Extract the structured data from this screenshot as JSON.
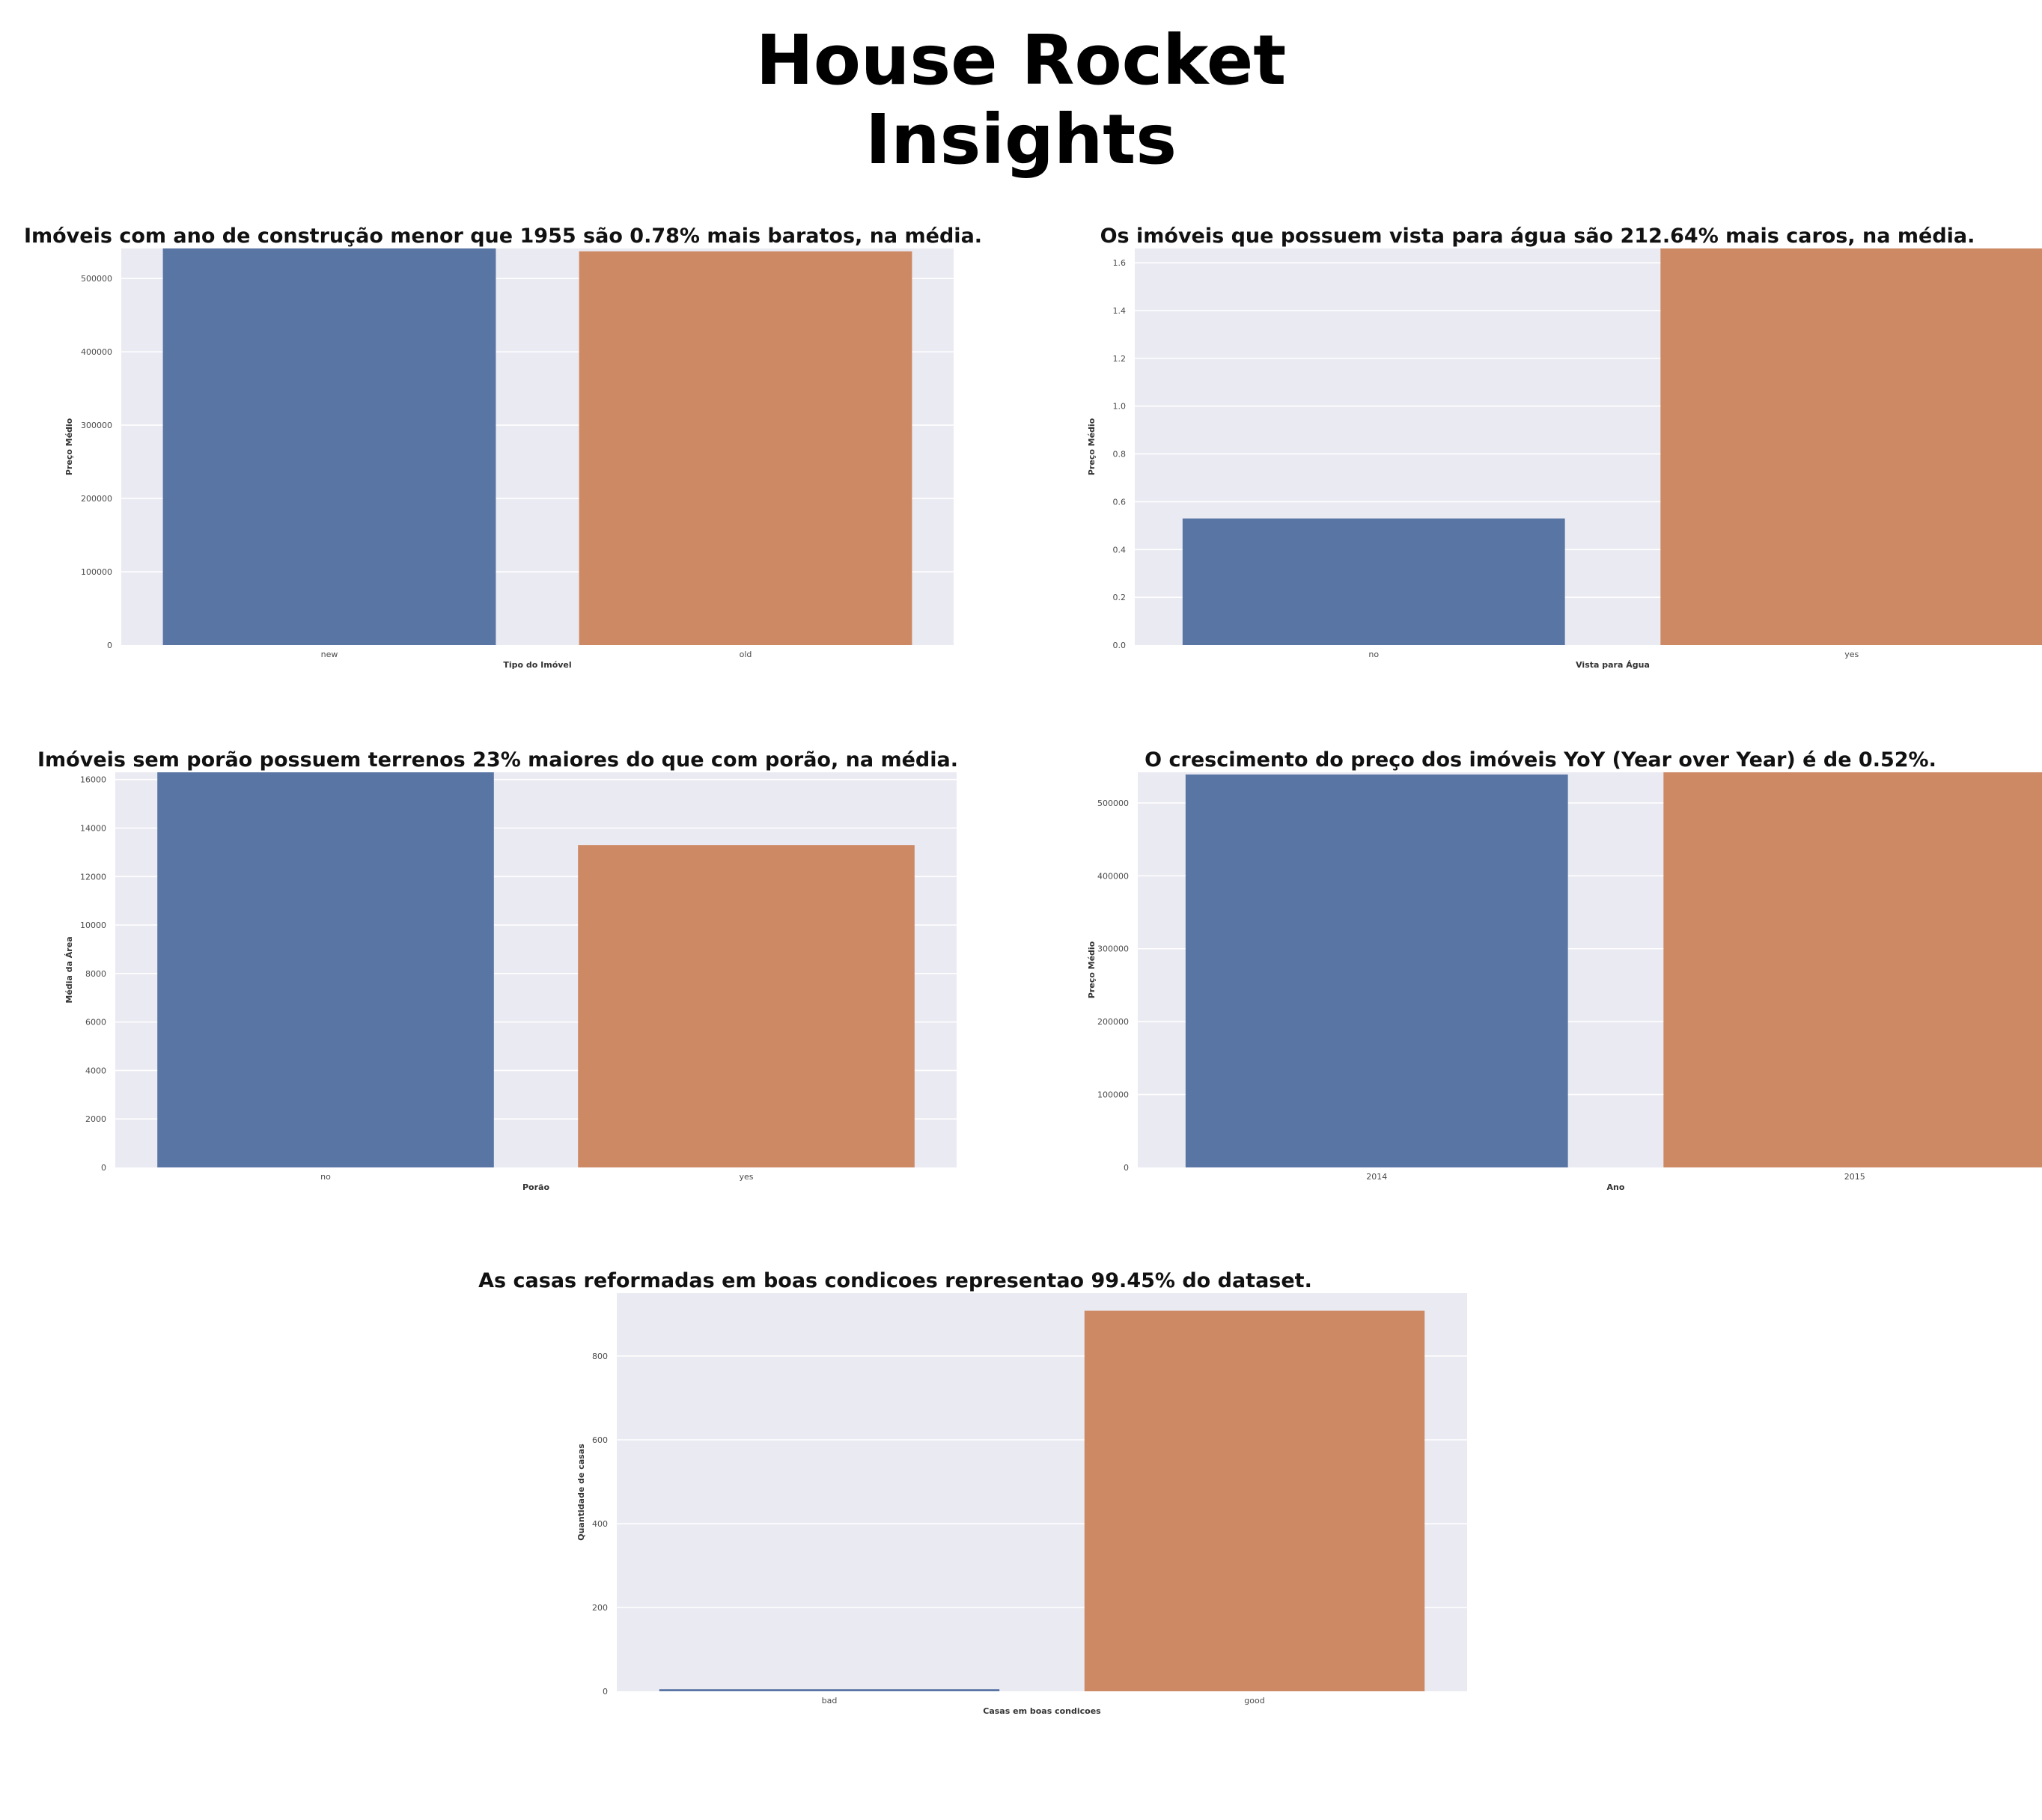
{
  "page": {
    "title_line1": "House Rocket",
    "title_line2": "Insights"
  },
  "colors": {
    "blue": "#5975a4",
    "orange": "#cc8963",
    "plot_bg": "#eaeaf2"
  },
  "chart_data": [
    {
      "type": "bar",
      "title": "Imóveis com ano de construção menor que 1955 são 0.78% mais baratos, na média.",
      "xlabel": "Tipo do Imóvel",
      "ylabel": "Preço Médio",
      "categories": [
        "new",
        "old"
      ],
      "values": [
        541000,
        537000
      ],
      "ylim": [
        0,
        541000
      ],
      "yticks": [
        0,
        100000,
        200000,
        300000,
        400000,
        500000
      ],
      "ytick_labels": [
        "0",
        "100000",
        "200000",
        "300000",
        "400000",
        "500000"
      ],
      "grid": true
    },
    {
      "type": "bar",
      "title": "Os imóveis que possuem vista para água são 212.64% mais caros, na média.",
      "xlabel": "Vista para Água",
      "ylabel": "Preço Médio",
      "categories": [
        "no",
        "yes"
      ],
      "values": [
        0.53,
        1.66
      ],
      "ylim": [
        0,
        1.66
      ],
      "yticks": [
        0,
        0.2,
        0.4,
        0.6,
        0.8,
        1.0,
        1.2,
        1.4,
        1.6
      ],
      "ytick_labels": [
        "0.0",
        "0.2",
        "0.4",
        "0.6",
        "0.8",
        "1.0",
        "1.2",
        "1.4",
        "1.6"
      ],
      "grid": true
    },
    {
      "type": "bar",
      "title": "Imóveis sem porão possuem terrenos 23% maiores do que com porão, na média.",
      "xlabel": "Porão",
      "ylabel": "Média da Área",
      "categories": [
        "no",
        "yes"
      ],
      "values": [
        16300,
        13300
      ],
      "ylim": [
        0,
        16300
      ],
      "yticks": [
        0,
        2000,
        4000,
        6000,
        8000,
        10000,
        12000,
        14000,
        16000
      ],
      "ytick_labels": [
        "0",
        "2000",
        "4000",
        "6000",
        "8000",
        "10000",
        "12000",
        "14000",
        "16000"
      ],
      "grid": true
    },
    {
      "type": "bar",
      "title": "O crescimento do preço dos imóveis YoY (Year over Year) é de 0.52%.",
      "xlabel": "Ano",
      "ylabel": "Preço Médio",
      "categories": [
        "2014",
        "2015"
      ],
      "values": [
        539000,
        542000
      ],
      "ylim": [
        0,
        542000
      ],
      "yticks": [
        0,
        100000,
        200000,
        300000,
        400000,
        500000
      ],
      "ytick_labels": [
        "0",
        "100000",
        "200000",
        "300000",
        "400000",
        "500000"
      ],
      "grid": true
    },
    {
      "type": "bar",
      "title": "As casas reformadas em boas condicoes representao 99.45% do dataset.",
      "xlabel": "Casas em boas condicoes",
      "ylabel": "Quantidade de casas",
      "categories": [
        "bad",
        "good"
      ],
      "values": [
        5,
        908
      ],
      "ylim": [
        0,
        950
      ],
      "yticks": [
        0,
        200,
        400,
        600,
        800
      ],
      "ytick_labels": [
        "0",
        "200",
        "400",
        "600",
        "800"
      ],
      "grid": true
    }
  ]
}
